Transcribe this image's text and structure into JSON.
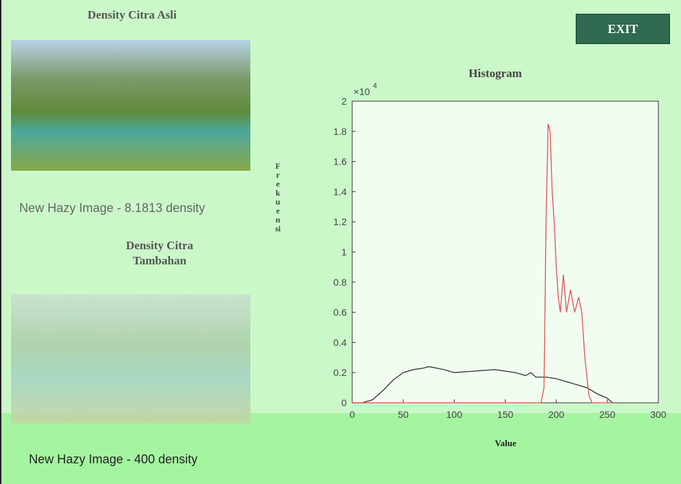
{
  "left_panel": {
    "original_title": "Density Citra Asli",
    "original_caption": "New Hazy Image - 8.1813 density",
    "added_title": "Density Citra Tambahan",
    "added_caption": "New Hazy Image - 400 density"
  },
  "exit_button": "EXIT",
  "histogram": {
    "type": "line",
    "title": "Histogram",
    "xlabel": "Value",
    "ylabel": "Frekuensi",
    "multiplier": "×10",
    "multiplier_exp": "4",
    "xlim": [
      0,
      300
    ],
    "xticks": [
      0,
      50,
      100,
      150,
      200,
      250,
      300
    ],
    "ylim": [
      0,
      2
    ],
    "yticks": [
      0,
      0.2,
      0.4,
      0.6,
      0.8,
      1,
      1.2,
      1.4,
      1.6,
      1.8,
      2
    ],
    "series": [
      {
        "color": "#333333",
        "x": [
          0,
          10,
          20,
          30,
          40,
          50,
          60,
          70,
          75,
          90,
          100,
          120,
          140,
          160,
          170,
          175,
          180,
          190,
          200,
          210,
          220,
          230,
          240,
          250,
          255
        ],
        "values": [
          0,
          0,
          0.02,
          0.08,
          0.15,
          0.2,
          0.22,
          0.23,
          0.24,
          0.22,
          0.2,
          0.21,
          0.22,
          0.2,
          0.18,
          0.2,
          0.17,
          0.17,
          0.16,
          0.14,
          0.12,
          0.1,
          0.06,
          0.03,
          0
        ]
      },
      {
        "color": "#e05050",
        "x": [
          0,
          185,
          188,
          190,
          192,
          194,
          196,
          198,
          200,
          202,
          204,
          207,
          210,
          214,
          218,
          222,
          225,
          228,
          232,
          235,
          255
        ],
        "values": [
          0,
          0,
          0.1,
          1.2,
          1.85,
          1.8,
          1.4,
          1.2,
          0.9,
          0.7,
          0.6,
          0.85,
          0.6,
          0.75,
          0.6,
          0.7,
          0.6,
          0.3,
          0.05,
          0,
          0
        ]
      }
    ]
  }
}
